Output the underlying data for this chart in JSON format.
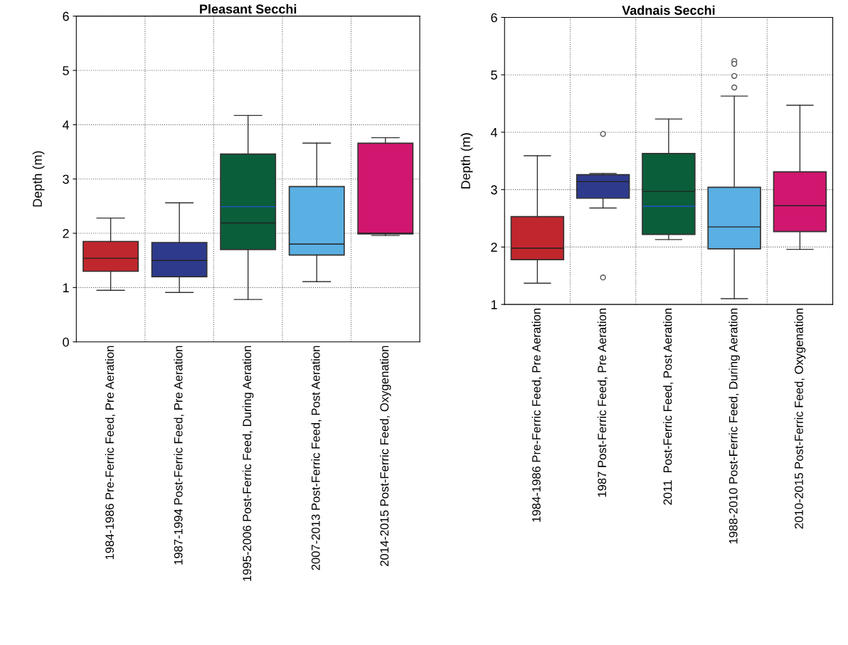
{
  "chart_data": [
    {
      "type": "box",
      "title": "Pleasant Secchi",
      "ylabel": "Depth (m)",
      "ylim": [
        0,
        6
      ],
      "yticks": [
        0,
        1,
        2,
        3,
        4,
        5,
        6
      ],
      "grid": true,
      "categories": [
        "1984-1986 Pre-Ferric Feed, Pre Aeration",
        "1987-1994 Post-Ferric Feed, Pre Aeration",
        "1995-2006 Post-Ferric Feed, During Aeration",
        "2007-2013 Post-Ferric Feed, Post Aeration",
        "2014-2015 Post-Ferric Feed, Oxygenation"
      ],
      "colors": [
        "#c0272d",
        "#2e3a8c",
        "#0b5e3a",
        "#5aafe3",
        "#d0166e"
      ],
      "boxes": [
        {
          "low": 0.95,
          "q1": 1.3,
          "median": 1.54,
          "q3": 1.85,
          "high": 2.28
        },
        {
          "low": 0.91,
          "q1": 1.2,
          "median": 1.5,
          "q3": 1.83,
          "high": 2.56
        },
        {
          "low": 0.78,
          "q1": 1.7,
          "median": 2.19,
          "q3": 3.46,
          "high": 4.17,
          "mean": 2.49
        },
        {
          "low": 1.11,
          "q1": 1.6,
          "median": 1.8,
          "q3": 2.86,
          "high": 3.66
        },
        {
          "low": 1.96,
          "q1": 1.99,
          "median": 2.0,
          "q3": 3.66,
          "high": 3.76
        }
      ]
    },
    {
      "type": "box",
      "title": "Vadnais Secchi",
      "ylabel": "Depth (m)",
      "ylim": [
        1,
        6
      ],
      "yticks": [
        1,
        2,
        3,
        4,
        5,
        6
      ],
      "grid": true,
      "categories": [
        "1984-1986 Pre-Ferric Feed, Pre Aeration",
        "1987 Post-Ferric Feed, Pre Aeration",
        "2011  Post-Ferric Feed, Post Aeration",
        "1988-2010 Post-Ferric Feed, During Aeration",
        "2010-2015 Post-Ferric Feed, Oxygenation"
      ],
      "colors": [
        "#c0272d",
        "#2e3a8c",
        "#0b5e3a",
        "#5aafe3",
        "#d0166e"
      ],
      "boxes": [
        {
          "low": 1.37,
          "q1": 1.78,
          "median": 1.98,
          "q3": 2.53,
          "high": 3.59
        },
        {
          "low": 2.68,
          "q1": 2.85,
          "median": 3.14,
          "q3": 3.26,
          "high": 3.28,
          "outliers": [
            3.97,
            1.47
          ]
        },
        {
          "low": 2.13,
          "q1": 2.22,
          "median": 2.97,
          "q3": 3.63,
          "high": 4.23,
          "mean": 2.71
        },
        {
          "low": 1.1,
          "q1": 1.97,
          "median": 2.35,
          "q3": 3.04,
          "high": 4.63,
          "outliers": [
            5.24,
            5.19,
            4.98,
            4.78
          ]
        },
        {
          "low": 1.96,
          "q1": 2.27,
          "median": 2.72,
          "q3": 3.31,
          "high": 4.47
        }
      ]
    }
  ]
}
